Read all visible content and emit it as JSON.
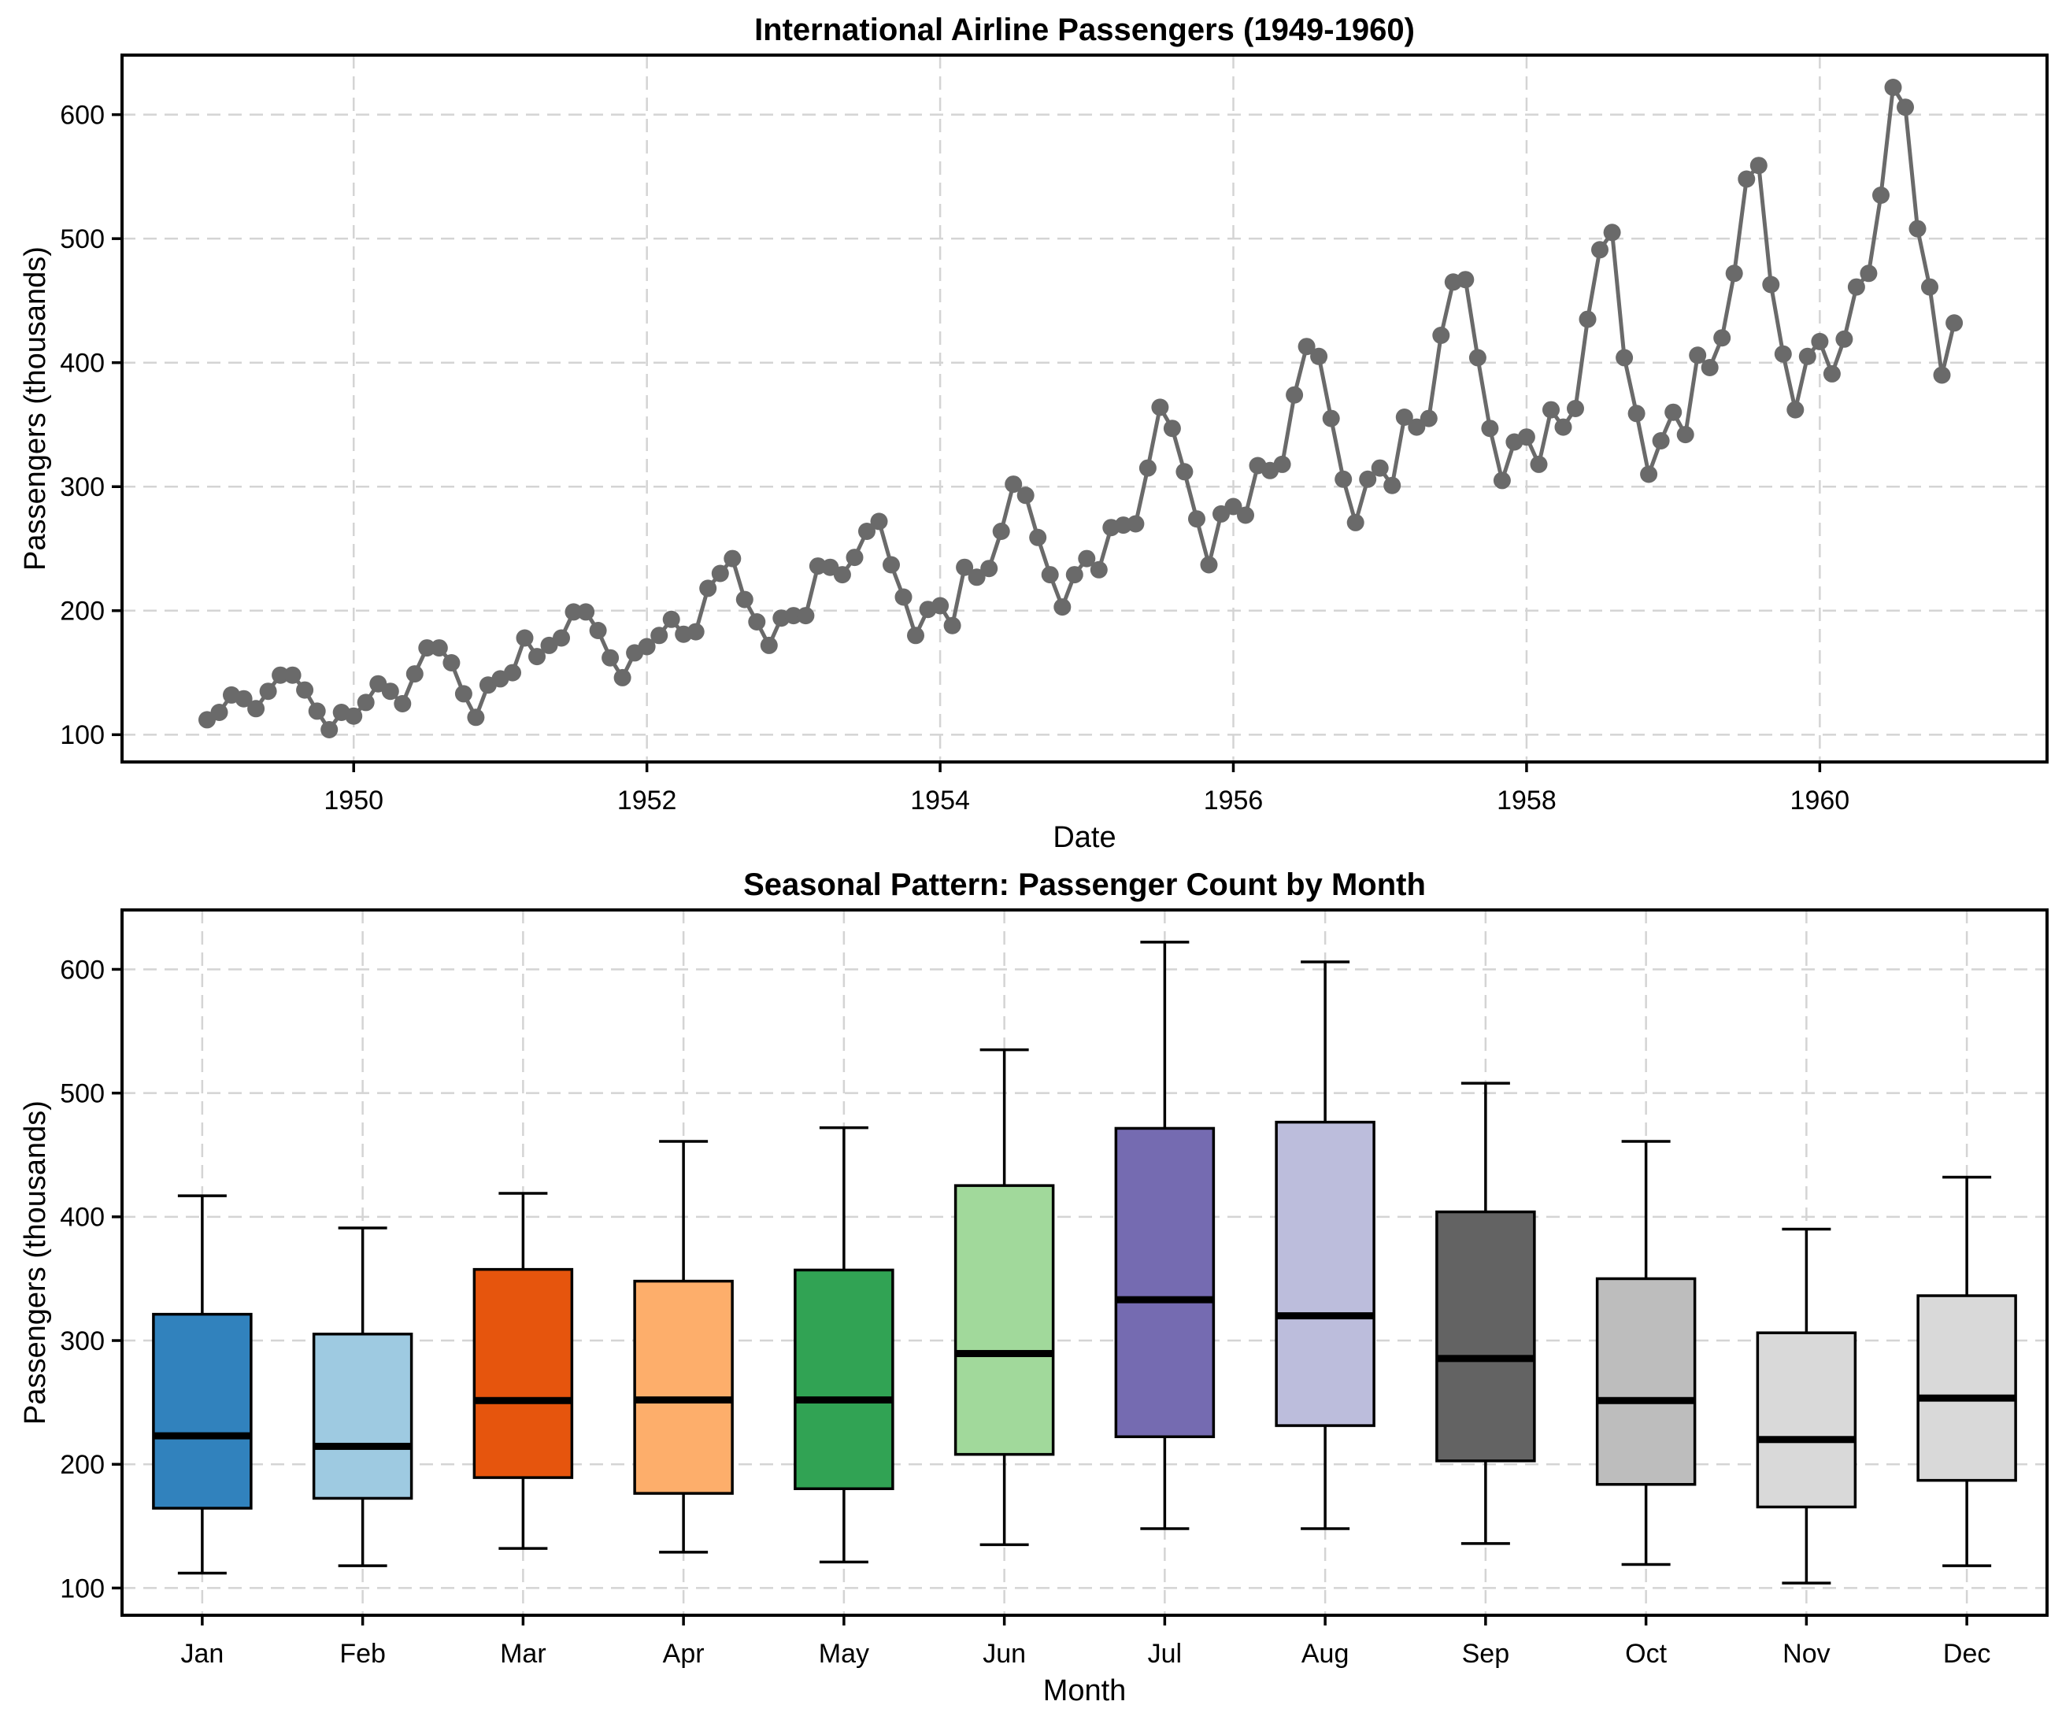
{
  "figure": {
    "background": "#ffffff",
    "text_color": "#000000",
    "grid_color": "#d4d4d4",
    "spine_color": "#000000"
  },
  "chart_data": [
    {
      "type": "line",
      "title": "International Airline Passengers (1949-1960)",
      "xlabel": "Date",
      "ylabel": "Passengers (thousands)",
      "x_tick_years": [
        1950,
        1952,
        1954,
        1956,
        1958,
        1960
      ],
      "x_tick_labels": [
        "1950",
        "1952",
        "1954",
        "1956",
        "1958",
        "1960"
      ],
      "y_ticks": [
        100,
        200,
        300,
        400,
        500,
        600
      ],
      "xlim": [
        1948.42,
        1961.55
      ],
      "ylim": [
        78,
        648
      ],
      "grid": true,
      "legend": false,
      "line_color": "#6a6a6a",
      "marker": "circle",
      "marker_color": "#6a6a6a",
      "start_year": 1949,
      "months_per_year": 12,
      "series": [
        {
          "name": "passengers",
          "values": [
            112,
            118,
            132,
            129,
            121,
            135,
            148,
            148,
            136,
            119,
            104,
            118,
            115,
            126,
            141,
            135,
            125,
            149,
            170,
            170,
            158,
            133,
            114,
            140,
            145,
            150,
            178,
            163,
            172,
            178,
            199,
            199,
            184,
            162,
            146,
            166,
            171,
            180,
            193,
            181,
            183,
            218,
            230,
            242,
            209,
            191,
            172,
            194,
            196,
            196,
            236,
            235,
            229,
            243,
            264,
            272,
            237,
            211,
            180,
            201,
            204,
            188,
            235,
            227,
            234,
            264,
            302,
            293,
            259,
            229,
            203,
            229,
            242,
            233,
            267,
            269,
            270,
            315,
            364,
            347,
            312,
            274,
            237,
            278,
            284,
            277,
            317,
            313,
            318,
            374,
            413,
            405,
            355,
            306,
            271,
            306,
            315,
            301,
            356,
            348,
            355,
            422,
            465,
            467,
            404,
            347,
            305,
            336,
            340,
            318,
            362,
            348,
            363,
            435,
            491,
            505,
            404,
            359,
            310,
            337,
            360,
            342,
            406,
            396,
            420,
            472,
            548,
            559,
            463,
            407,
            362,
            405,
            417,
            391,
            419,
            461,
            472,
            535,
            622,
            606,
            508,
            461,
            390,
            432
          ]
        }
      ]
    },
    {
      "type": "boxplot",
      "title": "Seasonal Pattern: Passenger Count by Month",
      "xlabel": "Month",
      "ylabel": "Passengers (thousands)",
      "categories": [
        "Jan",
        "Feb",
        "Mar",
        "Apr",
        "May",
        "Jun",
        "Jul",
        "Aug",
        "Sep",
        "Oct",
        "Nov",
        "Dec"
      ],
      "y_ticks": [
        100,
        200,
        300,
        400,
        500,
        600
      ],
      "ylim": [
        78,
        648
      ],
      "grid": true,
      "box_edge_color": "#000000",
      "median_color": "#000000",
      "whisker_color": "#000000",
      "box_colors": [
        "#3182bd",
        "#9ecae1",
        "#e6550d",
        "#fdae6b",
        "#31a354",
        "#a1d99b",
        "#756bb1",
        "#bcbddc",
        "#636363",
        "#bdbdbd",
        "#d9d9d9",
        "#d9d9d9"
      ],
      "stats": [
        {
          "label": "Jan",
          "whislo": 112,
          "q1": 164.5,
          "med": 223,
          "q3": 321.25,
          "whishi": 417
        },
        {
          "label": "Feb",
          "whislo": 118,
          "q1": 172.5,
          "med": 214.5,
          "q3": 305.25,
          "whishi": 391
        },
        {
          "label": "Mar",
          "whislo": 132,
          "q1": 189.25,
          "med": 251.5,
          "q3": 357.5,
          "whishi": 419
        },
        {
          "label": "Apr",
          "whislo": 129,
          "q1": 176.5,
          "med": 252,
          "q3": 348,
          "whishi": 461
        },
        {
          "label": "May",
          "whislo": 121,
          "q1": 180.25,
          "med": 252,
          "q3": 357,
          "whishi": 472
        },
        {
          "label": "Jun",
          "whislo": 135,
          "q1": 208,
          "med": 289.5,
          "q3": 425.25,
          "whishi": 535
        },
        {
          "label": "Jul",
          "whislo": 148,
          "q1": 222.25,
          "med": 333,
          "q3": 471.5,
          "whishi": 622
        },
        {
          "label": "Aug",
          "whislo": 148,
          "q1": 231.25,
          "med": 320,
          "q3": 476.5,
          "whishi": 606
        },
        {
          "label": "Sep",
          "whislo": 136,
          "q1": 202.75,
          "med": 285.5,
          "q3": 404,
          "whishi": 508
        },
        {
          "label": "Oct",
          "whislo": 119,
          "q1": 183.75,
          "med": 251.5,
          "q3": 350,
          "whishi": 461
        },
        {
          "label": "Nov",
          "whislo": 104,
          "q1": 165.5,
          "med": 220,
          "q3": 306.25,
          "whishi": 390
        },
        {
          "label": "Dec",
          "whislo": 118,
          "q1": 187,
          "med": 253.5,
          "q3": 336.25,
          "whishi": 432
        }
      ]
    }
  ]
}
